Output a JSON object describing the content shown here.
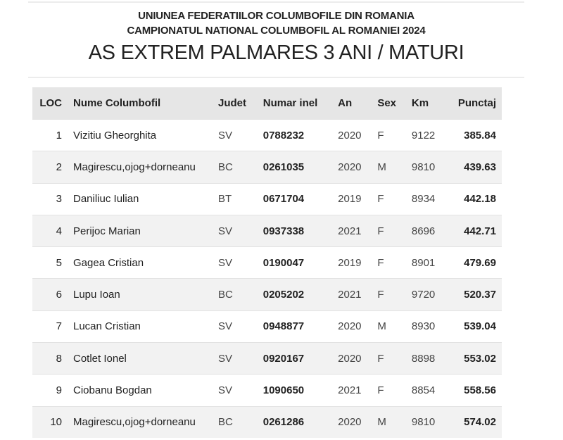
{
  "header": {
    "line1": "UNIUNEA FEDERATIILOR COLUMBOFILE DIN ROMANIA",
    "line2": "CAMPIONATUL NATIONAL COLUMBOFIL AL ROMANIEI 2024",
    "title": "AS EXTREM PALMARES 3 ANI / MATURI"
  },
  "table": {
    "columns": [
      "LOC",
      "Nume Columbofil",
      "Judet",
      "Numar inel",
      "An",
      "Sex",
      "Km",
      "Punctaj"
    ],
    "rows": [
      [
        "1",
        "Vizitiu Gheorghita",
        "SV",
        "0788232",
        "2020",
        "F",
        "9122",
        "385.84"
      ],
      [
        "2",
        "Magirescu,ojog+dorneanu",
        "BC",
        "0261035",
        "2020",
        "M",
        "9810",
        "439.63"
      ],
      [
        "3",
        "Daniliuc Iulian",
        "BT",
        "0671704",
        "2019",
        "F",
        "8934",
        "442.18"
      ],
      [
        "4",
        "Perijoc Marian",
        "SV",
        "0937338",
        "2021",
        "F",
        "8696",
        "442.71"
      ],
      [
        "5",
        "Gagea Cristian",
        "SV",
        "0190047",
        "2019",
        "F",
        "8901",
        "479.69"
      ],
      [
        "6",
        "Lupu Ioan",
        "BC",
        "0205202",
        "2021",
        "F",
        "9720",
        "520.37"
      ],
      [
        "7",
        "Lucan Cristian",
        "SV",
        "0948877",
        "2020",
        "M",
        "8930",
        "539.04"
      ],
      [
        "8",
        "Cotlet Ionel",
        "SV",
        "0920167",
        "2020",
        "F",
        "8898",
        "553.02"
      ],
      [
        "9",
        "Ciobanu Bogdan",
        "SV",
        "1090650",
        "2021",
        "F",
        "8854",
        "558.56"
      ],
      [
        "10",
        "Magirescu,ojog+dorneanu",
        "BC",
        "0261286",
        "2020",
        "M",
        "9810",
        "574.02"
      ]
    ]
  }
}
